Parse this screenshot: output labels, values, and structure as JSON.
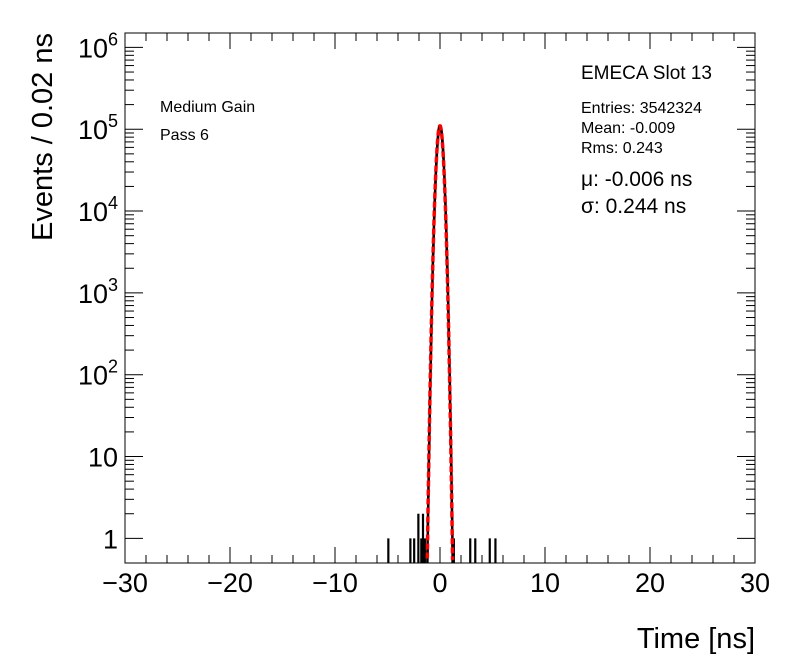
{
  "chart_data": {
    "type": "histogram",
    "xlabel": "Time [ns]",
    "ylabel": "Events / 0.02 ns",
    "xlim": [
      -30,
      30
    ],
    "ylim": [
      0.5,
      1500000
    ],
    "yscale": "log",
    "x_ticks": [
      -30,
      -20,
      -10,
      0,
      10,
      20,
      30
    ],
    "x_tick_labels": [
      "−30",
      "−20",
      "−10",
      "0",
      "10",
      "20",
      "30"
    ],
    "y_ticks": [
      {
        "value": 1,
        "base": "1",
        "exp": ""
      },
      {
        "value": 10,
        "base": "10",
        "exp": ""
      },
      {
        "value": 100,
        "base": "10",
        "exp": "2"
      },
      {
        "value": 1000,
        "base": "10",
        "exp": "3"
      },
      {
        "value": 10000,
        "base": "10",
        "exp": "4"
      },
      {
        "value": 100000,
        "base": "10",
        "exp": "5"
      },
      {
        "value": 1000000,
        "base": "10",
        "exp": "6"
      }
    ],
    "grid": false,
    "histogram_color": "#000000",
    "fit_color": "#ff0000",
    "fit": {
      "mu": -0.006,
      "sigma": 0.244,
      "peak": 110000
    },
    "isolated_bins": [
      {
        "x": -4.92,
        "y": 1
      },
      {
        "x": -2.82,
        "y": 1
      },
      {
        "x": -2.46,
        "y": 1
      },
      {
        "x": -2.06,
        "y": 2
      },
      {
        "x": -1.78,
        "y": 1
      },
      {
        "x": -1.62,
        "y": 2
      },
      {
        "x": -1.44,
        "y": 1
      },
      {
        "x": 1.32,
        "y": 1
      },
      {
        "x": 2.88,
        "y": 1
      },
      {
        "x": 3.36,
        "y": 1
      },
      {
        "x": 4.74,
        "y": 1
      },
      {
        "x": 5.28,
        "y": 1
      }
    ]
  },
  "annotations": {
    "gain": "Medium Gain",
    "pass": "Pass 6",
    "slot": "EMECA Slot 13",
    "entries": "Entries: 3542324",
    "mean": "Mean: -0.009",
    "rms": "Rms: 0.243",
    "mu": "μ: -0.006 ns",
    "sigma": "σ: 0.244 ns"
  }
}
